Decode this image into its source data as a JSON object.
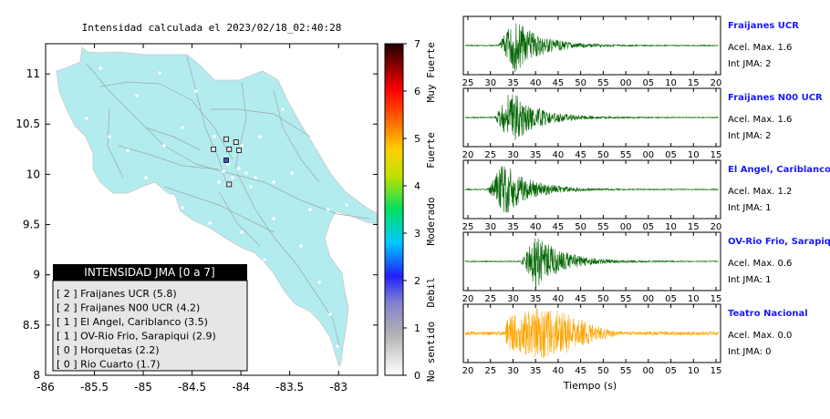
{
  "map": {
    "title": "Intensidad calculada el 2023/02/18_02:40:28",
    "xticks": [
      "-86",
      "-85.5",
      "-85",
      "-84.5",
      "-84",
      "-83.5",
      "-83"
    ],
    "yticks": [
      "11",
      "10.5",
      "10",
      "9.5",
      "9",
      "8.5",
      "8"
    ],
    "xlim": [
      -86.0,
      -82.6
    ],
    "ylim": [
      8.0,
      11.3
    ],
    "land_color": "#b3ecee",
    "station_markers": [
      {
        "lon": -84.15,
        "lat": 10.35
      },
      {
        "lon": -84.05,
        "lat": 10.32
      },
      {
        "lon": -84.28,
        "lat": 10.25
      },
      {
        "lon": -84.12,
        "lat": 10.25
      },
      {
        "lon": -84.02,
        "lat": 10.24
      },
      {
        "lon": -84.15,
        "lat": 10.14
      },
      {
        "lon": -84.12,
        "lat": 9.9
      }
    ]
  },
  "colorbar": {
    "tick_labels": [
      "0",
      "1",
      "2",
      "3",
      "4",
      "5",
      "6",
      "7"
    ],
    "category_labels": [
      "No sentido",
      "Debil",
      "Moderado",
      "Fuerte",
      "Muy Fuerte"
    ]
  },
  "legend": {
    "title": "INTENSIDAD JMA [0 a 7]",
    "entries": [
      "[ 2 ] Fraijanes UCR (5.8)",
      "[ 2 ] Fraijanes N00 UCR (4.2)",
      "[ 1 ] El Angel, Cariblanco (3.5)",
      "[ 1 ] OV-Rio Frio, Sarapiqui (2.9)",
      "[ 0 ] Horquetas (2.2)",
      "[ 0 ] Rio Cuarto (1.7)"
    ]
  },
  "chart_data": [
    {
      "type": "line",
      "title": "Fraijanes UCR",
      "accel_label": "Acel. Max. 1.6",
      "jma_label": "Int JMA: 2",
      "color": "#006400",
      "xticks": [
        "25",
        "30",
        "35",
        "40",
        "45",
        "50",
        "55",
        "00",
        "05",
        "10",
        "15",
        "20"
      ],
      "onset": 28,
      "peak": 1.6
    },
    {
      "type": "line",
      "title": "Fraijanes N00 UCR",
      "accel_label": "Acel. Max. 1.6",
      "jma_label": "Int JMA: 2",
      "color": "#006400",
      "xticks": [
        "20",
        "25",
        "30",
        "35",
        "40",
        "45",
        "50",
        "55",
        "00",
        "05",
        "10",
        "15"
      ],
      "onset": 27,
      "peak": 1.6
    },
    {
      "type": "line",
      "title": "El Angel, Cariblanco",
      "accel_label": "Acel. Max. 1.2",
      "jma_label": "Int JMA: 1",
      "color": "#006400",
      "xticks": [
        "25",
        "30",
        "35",
        "40",
        "45",
        "50",
        "55",
        "00",
        "05",
        "10",
        "15",
        "20"
      ],
      "onset": 25,
      "peak": 1.2
    },
    {
      "type": "line",
      "title": "OV-Rio Frio, Sarapiqui",
      "accel_label": "Acel. Max. 0.6",
      "jma_label": "Int JMA: 1",
      "color": "#006400",
      "xticks": [
        "20",
        "25",
        "30",
        "35",
        "40",
        "45",
        "50",
        "55",
        "00",
        "05",
        "10",
        "15"
      ],
      "onset": 34,
      "peak": 0.6
    },
    {
      "type": "line",
      "title": "Teatro Nacional",
      "accel_label": "Acel. Max. 0.0",
      "jma_label": "Int JMA: 0",
      "color": "#ffa500",
      "xticks": [
        "20",
        "25",
        "30",
        "35",
        "40",
        "45",
        "50",
        "55",
        "00",
        "05",
        "10",
        "15"
      ],
      "onset": 30,
      "peak": 0.0
    }
  ],
  "xlabel": "Tiempo (s)"
}
